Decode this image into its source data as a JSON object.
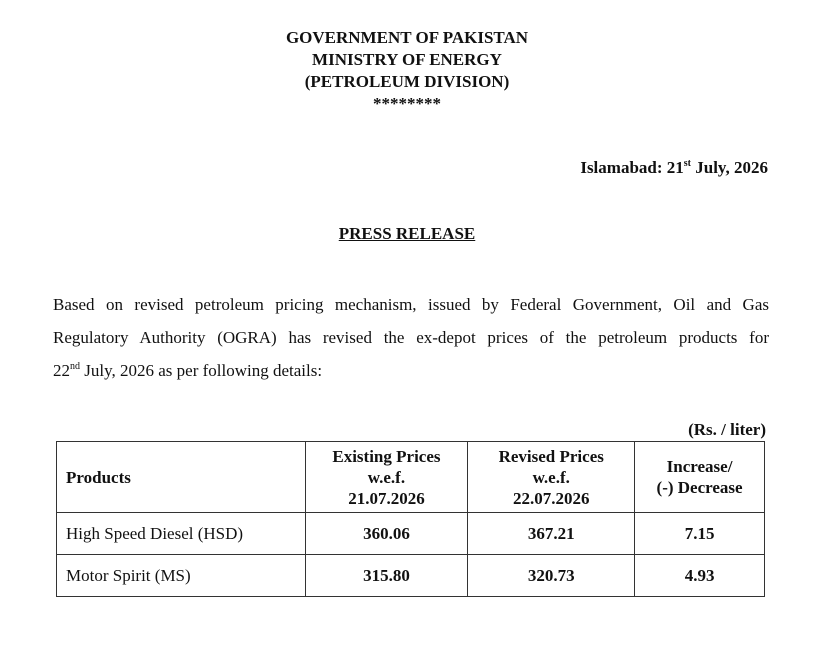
{
  "header": {
    "line_1": "GOVERNMENT OF PAKISTAN",
    "line_2": "MINISTRY OF ENERGY",
    "line_3": "(PETROLEUM DIVISION)",
    "separator": "********"
  },
  "dateline": {
    "prefix": "Islamabad: 21",
    "suffix": "st",
    "rest": " July, 2026"
  },
  "title": "PRESS RELEASE",
  "paragraph": {
    "line_1": "Based on revised petroleum pricing mechanism, issued by Federal Government, Oil and Gas",
    "line_2": "Regulatory Authority (OGRA) has revised the ex-depot prices of the petroleum products for",
    "line_3_prefix": "22",
    "line_3_suffix": "nd",
    "line_3_rest": " July, 2026 as per following details:"
  },
  "unit_note": "(Rs. / liter)",
  "table": {
    "headers": [
      [
        "Products"
      ],
      [
        "Existing Prices",
        "w.e.f.",
        "21.07.2026"
      ],
      [
        "Revised Prices",
        "w.e.f.",
        "22.07.2026"
      ],
      [
        "Increase/",
        "(-) Decrease"
      ]
    ],
    "rows": [
      [
        "High Speed Diesel (HSD)",
        "360.06",
        "367.21",
        "7.15"
      ],
      [
        "Motor Spirit (MS)",
        "315.80",
        "320.73",
        "4.93"
      ]
    ]
  }
}
